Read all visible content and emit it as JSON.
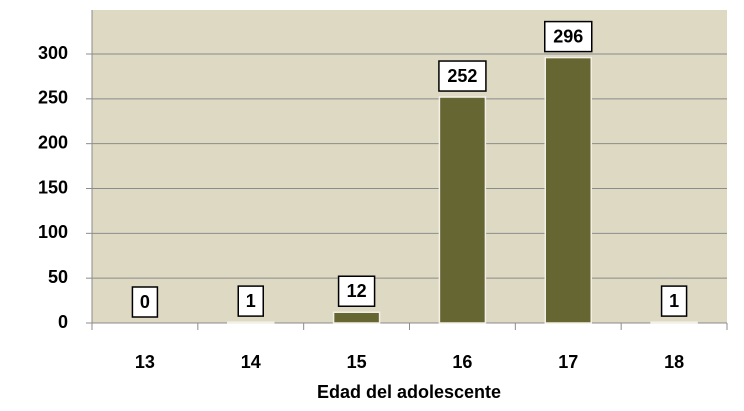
{
  "chart_data": {
    "type": "bar",
    "x_label": "Edad del adolescente",
    "categories": [
      "13",
      "14",
      "15",
      "16",
      "17",
      "18"
    ],
    "values": [
      0,
      1,
      12,
      252,
      296,
      1
    ],
    "color": "#666633",
    "ylim": [
      0,
      300
    ],
    "yticks": [
      0,
      50,
      100,
      150,
      200,
      250,
      300
    ],
    "grid": true
  }
}
